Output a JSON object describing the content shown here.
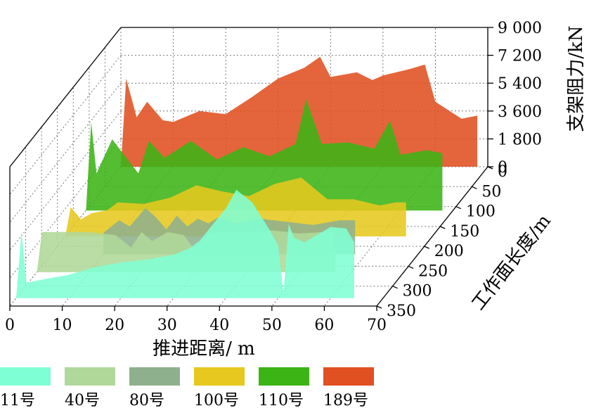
{
  "chart_data": {
    "type": "area",
    "x_axis": {
      "label": "推进距离/ m",
      "range": [
        0,
        70
      ],
      "ticks": [
        "0",
        "10",
        "20",
        "30",
        "40",
        "50",
        "60",
        "70"
      ]
    },
    "depth_axis": {
      "label": "工作面长度/m",
      "range": [
        0,
        350
      ],
      "ticks": [
        "0",
        "50",
        "100",
        "150",
        "200",
        "250",
        "300",
        "350"
      ]
    },
    "z_axis": {
      "label": "支架阻力/kN",
      "range": [
        0,
        9000
      ],
      "ticks": [
        "0",
        "1 800",
        "3 600",
        "5 400",
        "7 200",
        "9 000"
      ]
    },
    "grid": true,
    "legend_position": "bottom",
    "series": [
      {
        "name": "11号",
        "color": "#7fffd4",
        "depth": 330,
        "x": [
          0,
          1,
          2,
          5,
          10,
          15,
          20,
          25,
          30,
          33,
          35,
          40,
          42,
          45,
          48,
          50,
          51,
          52,
          53,
          55,
          58,
          60,
          63,
          64.5
        ],
        "values": [
          0,
          4300,
          1000,
          1200,
          1500,
          2000,
          2300,
          2500,
          2800,
          3200,
          3700,
          5800,
          7000,
          6200,
          4600,
          3400,
          300,
          4800,
          3900,
          3600,
          4200,
          4600,
          4500,
          3600
        ]
      },
      {
        "name": "40号",
        "color": "#b0d898",
        "depth": 265,
        "x": [
          0,
          1,
          5,
          10,
          15,
          18,
          20,
          22,
          25,
          28,
          30,
          33,
          35,
          38,
          40,
          45,
          48,
          50,
          55,
          57
        ],
        "values": [
          0,
          2600,
          2600,
          2600,
          2400,
          1600,
          2600,
          2000,
          2600,
          2400,
          1500,
          2500,
          2600,
          2600,
          2600,
          2700,
          2600,
          2500,
          2600,
          2600
        ]
      },
      {
        "name": "80号",
        "color": "#8fb08c",
        "depth": 220,
        "x": [
          10,
          13,
          15,
          18,
          20,
          22,
          24,
          26,
          28,
          30,
          32,
          35,
          40,
          45,
          50,
          55,
          58
        ],
        "values": [
          1400,
          2200,
          1800,
          3000,
          2400,
          1600,
          2500,
          1800,
          2300,
          2000,
          2400,
          2000,
          2300,
          2100,
          1900,
          2200,
          2200
        ]
      },
      {
        "name": "100号",
        "color": "#e6c81e",
        "depth": 175,
        "x": [
          0,
          1,
          3,
          5,
          8,
          10,
          15,
          20,
          25,
          30,
          35,
          40,
          45,
          50,
          55,
          60,
          63,
          65
        ],
        "values": [
          0,
          1900,
          1100,
          1500,
          1700,
          2200,
          2100,
          2500,
          3300,
          2900,
          2600,
          3400,
          3800,
          2400,
          2400,
          2000,
          2200,
          2200
        ]
      },
      {
        "name": "110号",
        "color": "#3cb416",
        "depth": 110,
        "x": [
          0,
          1,
          2,
          5,
          10,
          12,
          15,
          20,
          25,
          30,
          35,
          40,
          42,
          45,
          50,
          55,
          58,
          60,
          65,
          68
        ],
        "values": [
          0,
          5700,
          2400,
          4600,
          2400,
          4500,
          3400,
          4500,
          3300,
          4100,
          3500,
          4300,
          7200,
          4300,
          4400,
          4000,
          5800,
          3600,
          3900,
          3700
        ]
      },
      {
        "name": "189号",
        "color": "#e05020",
        "depth": 0,
        "x": [
          0,
          1,
          3,
          5,
          8,
          10,
          15,
          20,
          25,
          30,
          35,
          38,
          40,
          45,
          48,
          50,
          55,
          58,
          60,
          65,
          68
        ],
        "values": [
          0,
          5700,
          3200,
          4200,
          3000,
          2900,
          3600,
          3400,
          4500,
          5700,
          6400,
          7100,
          5800,
          6100,
          5600,
          5900,
          6300,
          6600,
          4200,
          3100,
          3300
        ]
      }
    ]
  }
}
